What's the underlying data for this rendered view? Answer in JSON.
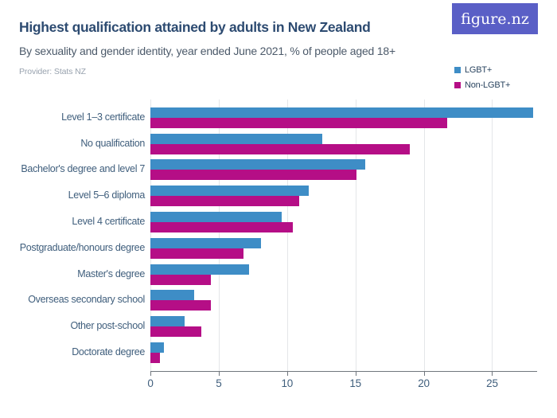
{
  "header": {
    "title": "Highest qualification attained by adults in New Zealand",
    "subtitle": "By sexuality and gender identity, year ended June 2021, % of people aged 18+",
    "provider": "Provider: Stats NZ",
    "logo_text": "figure.nz"
  },
  "legend": [
    {
      "label": "LGBT+",
      "color": "#3e8dc6"
    },
    {
      "label": "Non-LGBT+",
      "color": "#b50e86"
    }
  ],
  "colors": {
    "lgbt": "#3e8dc6",
    "non_lgbt": "#b50e86",
    "title": "#2d4b71",
    "axis_text": "#3f5e7c",
    "gridline": "#e4e6e9",
    "axis_line": "#70767d",
    "logo_background": "#5a5fc6"
  },
  "chart_data": {
    "type": "bar",
    "orientation": "horizontal",
    "title": "Highest qualification attained by adults in New Zealand",
    "subtitle": "By sexuality and gender identity, year ended June 2021, % of people aged 18+",
    "xlabel": "",
    "ylabel": "",
    "xlim": [
      0,
      28
    ],
    "xticks": [
      0,
      5,
      10,
      15,
      20,
      25
    ],
    "grid": true,
    "legend_position": "top-right",
    "categories": [
      "Level 1–3 certificate",
      "No qualification",
      "Bachelor's degree and level 7",
      "Level 5–6 diploma",
      "Level 4 certificate",
      "Postgraduate/honours degree",
      "Master's degree",
      "Overseas secondary school",
      "Other post-school",
      "Doctorate degree"
    ],
    "series": [
      {
        "name": "LGBT+",
        "color": "#3e8dc6",
        "values": [
          28.0,
          12.6,
          15.7,
          11.6,
          9.6,
          8.1,
          7.2,
          3.2,
          2.5,
          1.0
        ]
      },
      {
        "name": "Non-LGBT+",
        "color": "#b50e86",
        "values": [
          21.7,
          19.0,
          15.1,
          10.9,
          10.4,
          6.8,
          4.4,
          4.4,
          3.7,
          0.7
        ]
      }
    ]
  }
}
